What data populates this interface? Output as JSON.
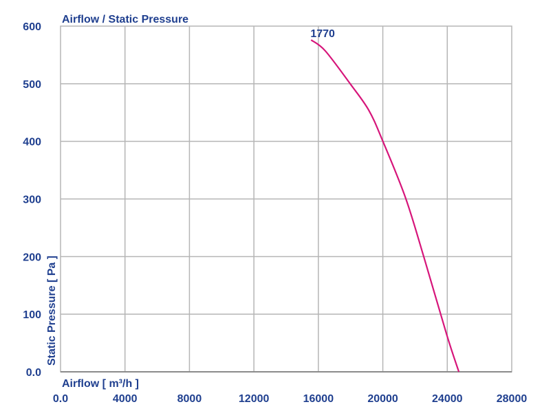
{
  "chart_data": {
    "type": "line",
    "title": "Airflow / Static Pressure",
    "xlabel": "Airflow [ m³/h ]",
    "ylabel": "Static Pressure [ Pa ]",
    "xlim": [
      0,
      28000
    ],
    "ylim": [
      0,
      600
    ],
    "grid": true,
    "x_ticks": [
      0,
      4000,
      8000,
      12000,
      16000,
      20000,
      24000,
      28000
    ],
    "x_tick_labels": [
      "0.0",
      "4000",
      "8000",
      "12000",
      "16000",
      "20000",
      "24000",
      "28000"
    ],
    "y_ticks": [
      0,
      100,
      200,
      300,
      400,
      500,
      600
    ],
    "y_tick_labels": [
      "0.0",
      "100",
      "200",
      "300",
      "400",
      "500",
      "600"
    ],
    "series": [
      {
        "name": "1770",
        "color": "#d6157a",
        "x": [
          15550,
          16430,
          18000,
          19130,
          19990,
          21410,
          22550,
          23970,
          24720
        ],
        "y": [
          576,
          557,
          499,
          454,
          401,
          302,
          199,
          64,
          0
        ]
      }
    ],
    "annotations": [
      {
        "text": "1770"
      }
    ]
  }
}
